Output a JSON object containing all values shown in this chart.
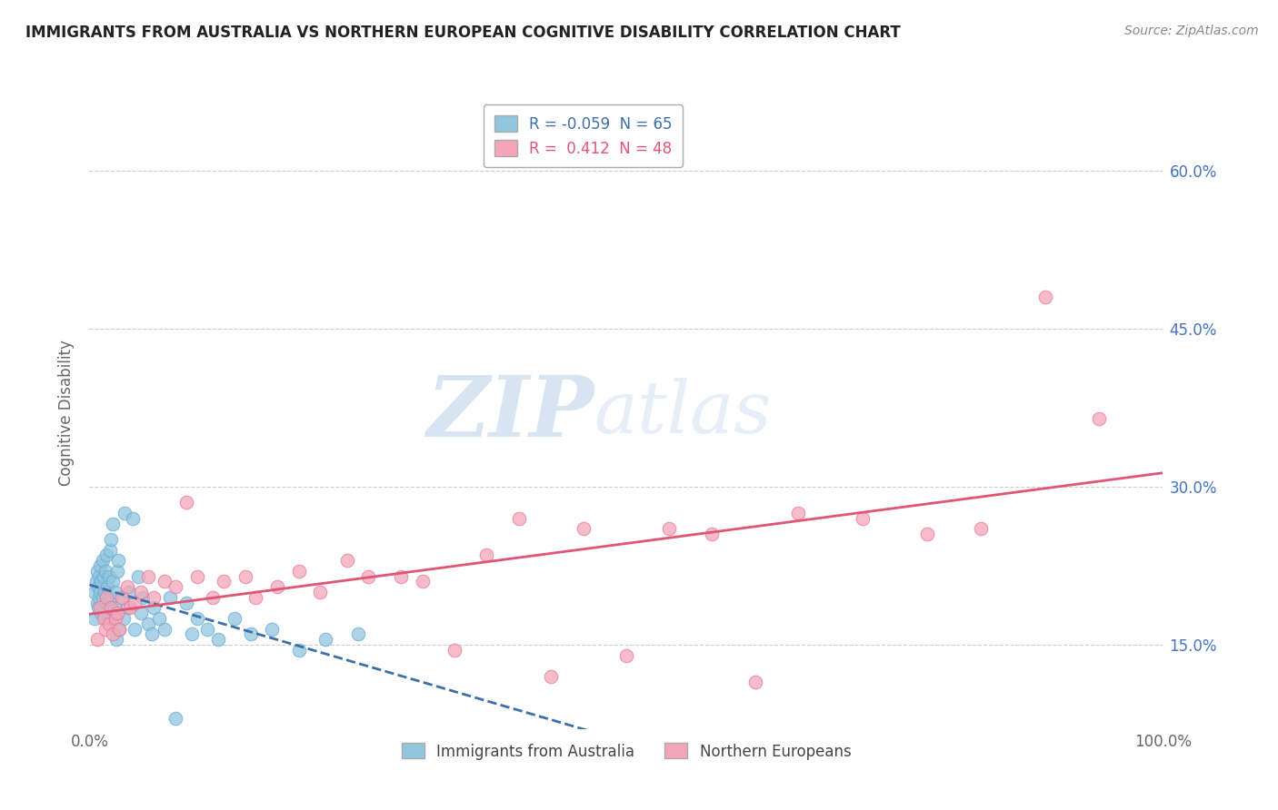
{
  "title": "IMMIGRANTS FROM AUSTRALIA VS NORTHERN EUROPEAN COGNITIVE DISABILITY CORRELATION CHART",
  "source": "Source: ZipAtlas.com",
  "ylabel": "Cognitive Disability",
  "xlim": [
    0.0,
    1.0
  ],
  "ylim": [
    0.07,
    0.67
  ],
  "yticks": [
    0.15,
    0.3,
    0.45,
    0.6
  ],
  "ytick_labels": [
    "15.0%",
    "30.0%",
    "45.0%",
    "60.0%"
  ],
  "xticks": [
    0.0,
    1.0
  ],
  "xtick_labels": [
    "0.0%",
    "100.0%"
  ],
  "blue_R": -0.059,
  "blue_N": 65,
  "pink_R": 0.412,
  "pink_N": 48,
  "blue_color": "#92c5de",
  "blue_edge_color": "#6baed6",
  "blue_line_color": "#3d6fa8",
  "pink_color": "#f4a6b8",
  "pink_edge_color": "#e87b9a",
  "pink_line_color": "#e05575",
  "legend_label_blue": "Immigrants from Australia",
  "legend_label_pink": "Northern Europeans",
  "watermark_zip": "ZIP",
  "watermark_atlas": "atlas",
  "background_color": "#ffffff",
  "grid_color": "#cccccc",
  "blue_points_x": [
    0.005,
    0.005,
    0.006,
    0.007,
    0.007,
    0.008,
    0.008,
    0.009,
    0.009,
    0.01,
    0.01,
    0.011,
    0.011,
    0.012,
    0.012,
    0.013,
    0.013,
    0.014,
    0.015,
    0.015,
    0.016,
    0.016,
    0.017,
    0.018,
    0.018,
    0.019,
    0.02,
    0.02,
    0.021,
    0.022,
    0.022,
    0.023,
    0.024,
    0.025,
    0.026,
    0.027,
    0.028,
    0.03,
    0.032,
    0.033,
    0.035,
    0.037,
    0.04,
    0.042,
    0.045,
    0.048,
    0.05,
    0.055,
    0.058,
    0.06,
    0.065,
    0.07,
    0.075,
    0.08,
    0.09,
    0.095,
    0.1,
    0.11,
    0.12,
    0.135,
    0.15,
    0.17,
    0.195,
    0.22,
    0.25
  ],
  "blue_points_y": [
    0.2,
    0.175,
    0.21,
    0.19,
    0.22,
    0.205,
    0.185,
    0.195,
    0.215,
    0.2,
    0.225,
    0.18,
    0.21,
    0.195,
    0.23,
    0.185,
    0.215,
    0.2,
    0.175,
    0.22,
    0.19,
    0.235,
    0.205,
    0.215,
    0.185,
    0.24,
    0.195,
    0.25,
    0.175,
    0.21,
    0.265,
    0.185,
    0.2,
    0.155,
    0.22,
    0.23,
    0.165,
    0.195,
    0.175,
    0.275,
    0.185,
    0.2,
    0.27,
    0.165,
    0.215,
    0.18,
    0.195,
    0.17,
    0.16,
    0.185,
    0.175,
    0.165,
    0.195,
    0.08,
    0.19,
    0.16,
    0.175,
    0.165,
    0.155,
    0.175,
    0.16,
    0.165,
    0.145,
    0.155,
    0.16
  ],
  "pink_points_x": [
    0.007,
    0.01,
    0.013,
    0.015,
    0.016,
    0.018,
    0.02,
    0.022,
    0.024,
    0.026,
    0.028,
    0.03,
    0.035,
    0.038,
    0.042,
    0.048,
    0.055,
    0.06,
    0.07,
    0.08,
    0.09,
    0.1,
    0.115,
    0.125,
    0.145,
    0.155,
    0.175,
    0.195,
    0.215,
    0.24,
    0.26,
    0.29,
    0.31,
    0.34,
    0.37,
    0.4,
    0.43,
    0.46,
    0.5,
    0.54,
    0.58,
    0.62,
    0.66,
    0.72,
    0.78,
    0.83,
    0.89,
    0.94
  ],
  "pink_points_y": [
    0.155,
    0.185,
    0.175,
    0.165,
    0.195,
    0.17,
    0.185,
    0.16,
    0.175,
    0.18,
    0.165,
    0.195,
    0.205,
    0.185,
    0.19,
    0.2,
    0.215,
    0.195,
    0.21,
    0.205,
    0.285,
    0.215,
    0.195,
    0.21,
    0.215,
    0.195,
    0.205,
    0.22,
    0.2,
    0.23,
    0.215,
    0.215,
    0.21,
    0.145,
    0.235,
    0.27,
    0.12,
    0.26,
    0.14,
    0.26,
    0.255,
    0.115,
    0.275,
    0.27,
    0.255,
    0.26,
    0.48,
    0.365
  ]
}
